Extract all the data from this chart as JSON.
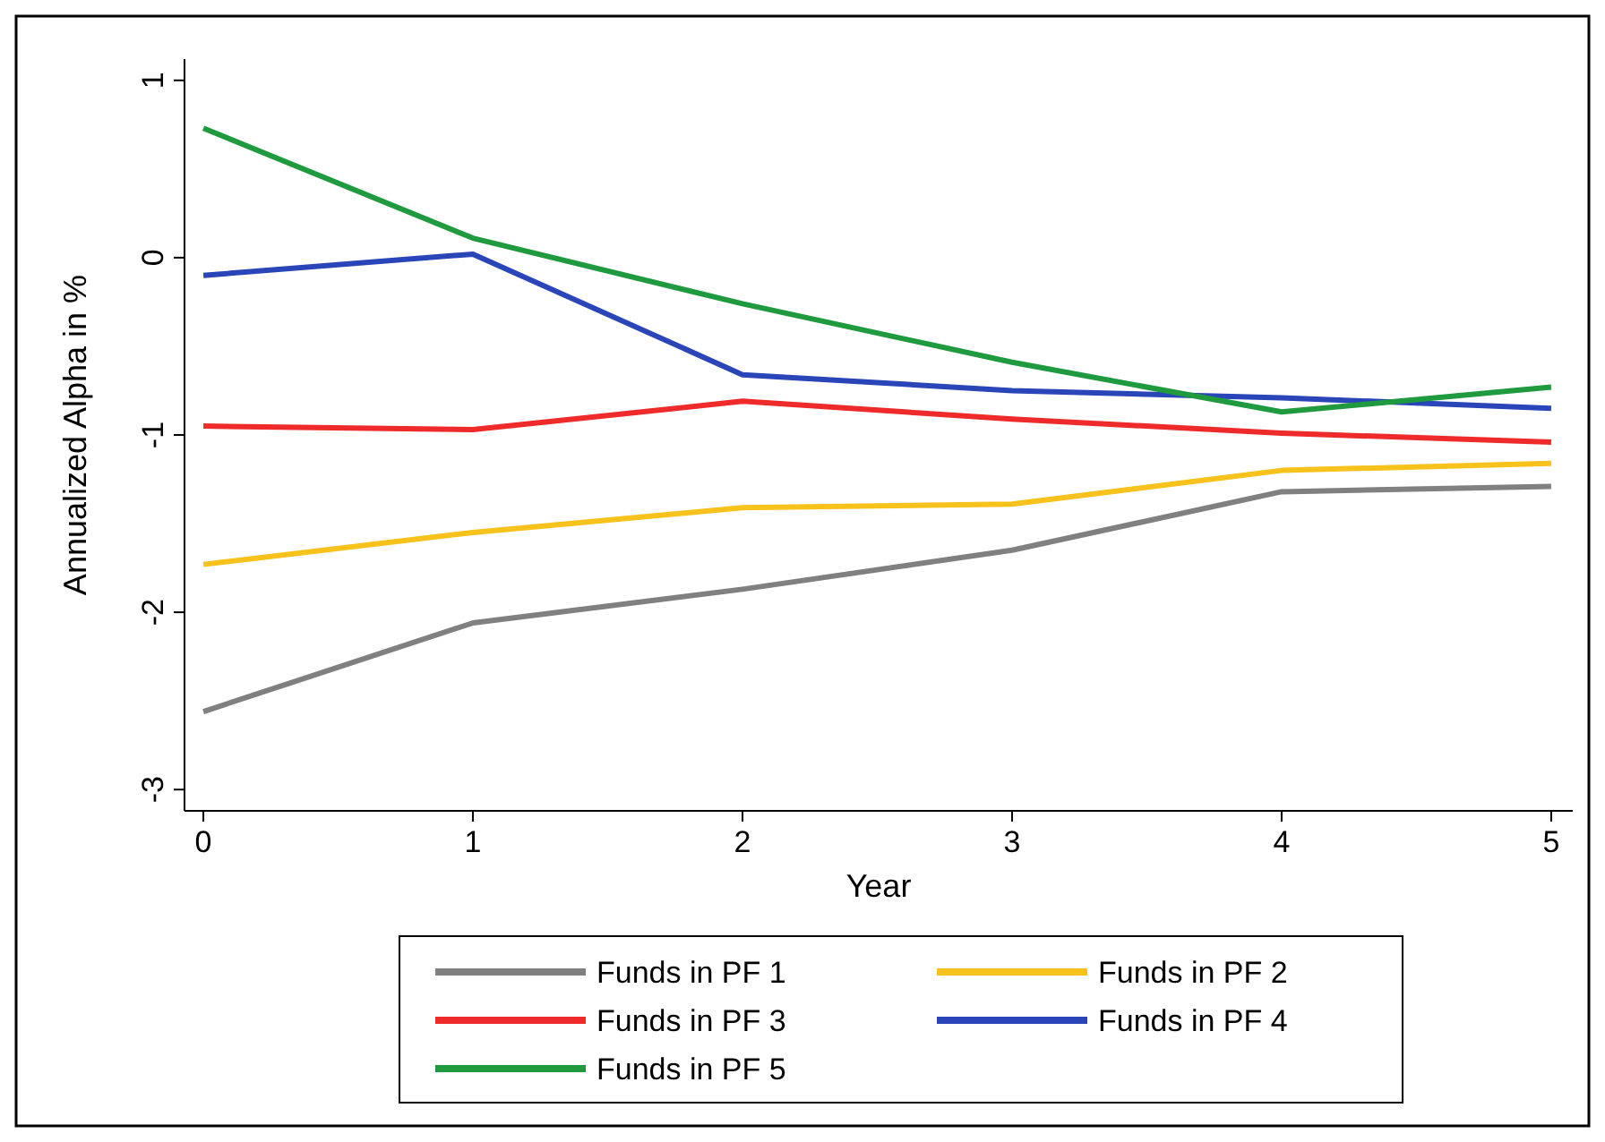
{
  "chart_data": {
    "type": "line",
    "xlabel": "Year",
    "ylabel": "Annualized Alpha in %",
    "x": [
      0,
      1,
      2,
      3,
      4,
      5
    ],
    "xlim": [
      -0.07,
      5.08
    ],
    "xticks": [
      0,
      1,
      2,
      3,
      4,
      5
    ],
    "ylim": [
      -3.12,
      1.12
    ],
    "yticks": [
      -3,
      -2,
      -1,
      0,
      1
    ],
    "grid": false,
    "legend": "bottom",
    "line_style": "solid",
    "marker": "none",
    "series": [
      {
        "name": "Funds in PF 1",
        "color": "#808080",
        "values": [
          -2.56,
          -2.06,
          -1.87,
          -1.65,
          -1.32,
          -1.29
        ]
      },
      {
        "name": "Funds in PF 2",
        "color": "#f7c21c",
        "values": [
          -1.73,
          -1.55,
          -1.41,
          -1.39,
          -1.2,
          -1.16
        ]
      },
      {
        "name": "Funds in PF 3",
        "color": "#ee2a2a",
        "values": [
          -0.95,
          -0.97,
          -0.81,
          -0.91,
          -0.99,
          -1.04
        ]
      },
      {
        "name": "Funds in PF 4",
        "color": "#2a45b8",
        "values": [
          -0.1,
          0.02,
          -0.66,
          -0.75,
          -0.79,
          -0.85
        ]
      },
      {
        "name": "Funds in PF 5",
        "color": "#1f9a3e",
        "values": [
          0.73,
          0.11,
          -0.26,
          -0.59,
          -0.87,
          -0.73
        ]
      }
    ]
  }
}
